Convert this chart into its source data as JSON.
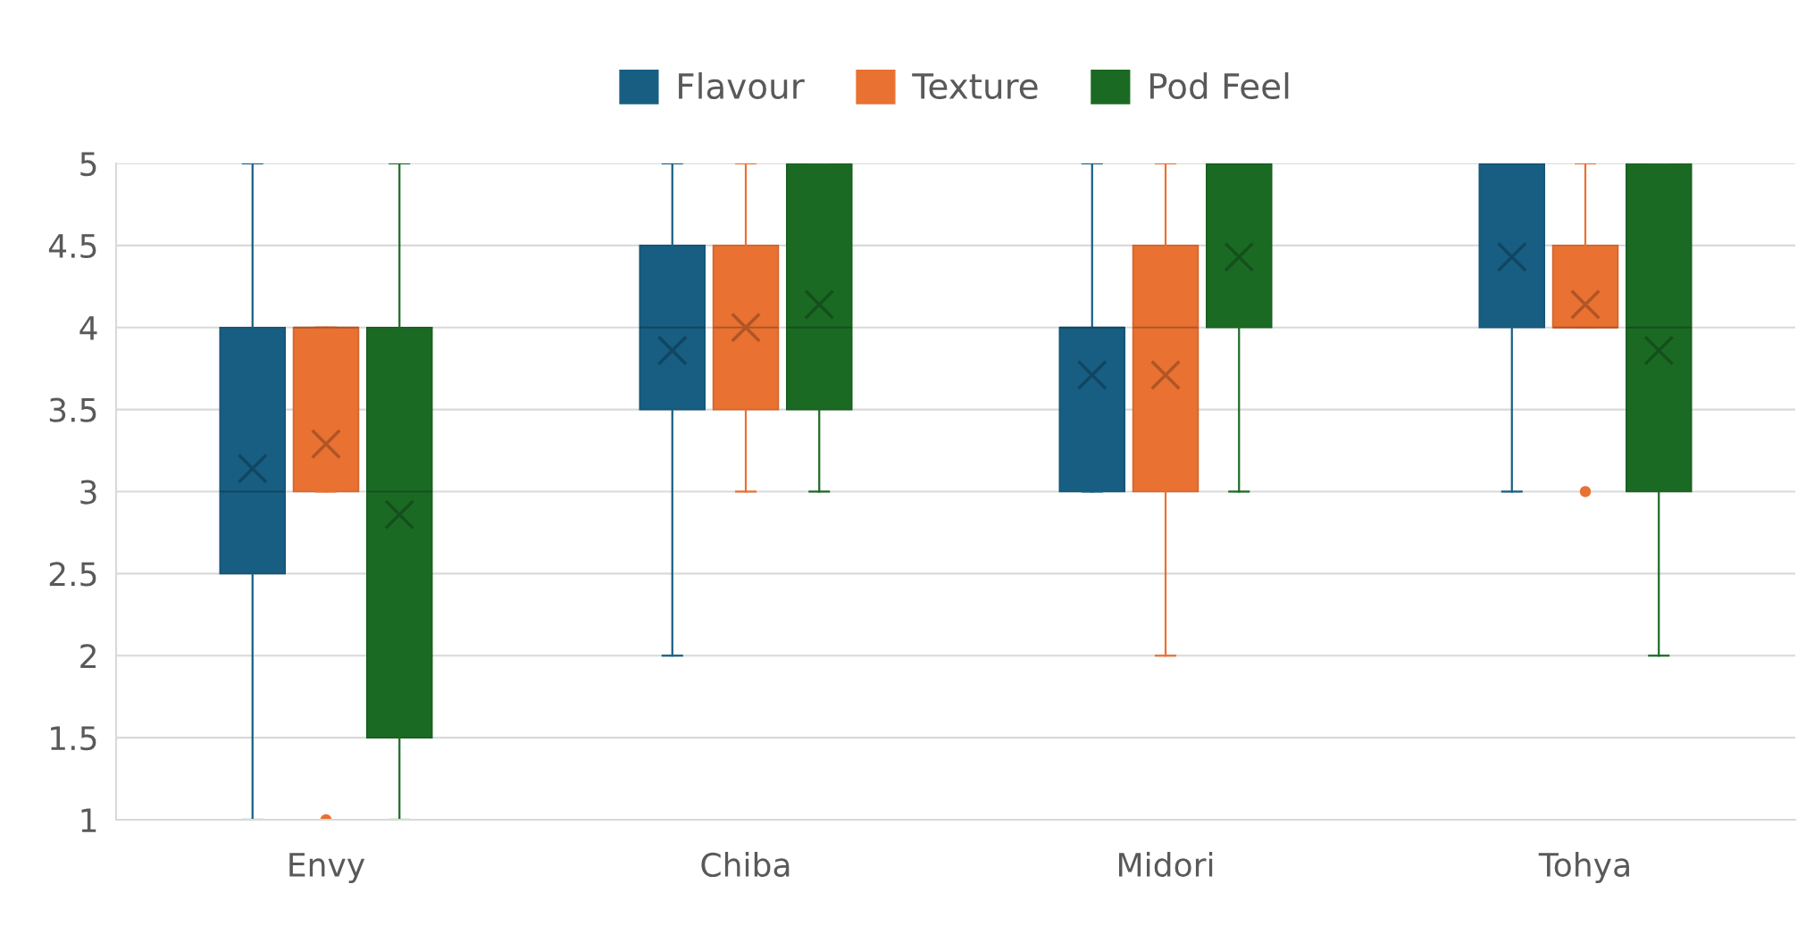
{
  "chart_data": {
    "type": "box",
    "categories": [
      "Envy",
      "Chiba",
      "Midori",
      "Tohya"
    ],
    "series": [
      {
        "name": "Flavour",
        "color": "#175e82",
        "boxes": [
          {
            "low": 1,
            "q1": 2.5,
            "median": 3,
            "q3": 4,
            "high": 5,
            "mean": 3.14
          },
          {
            "low": 2,
            "q1": 3.5,
            "median": 4,
            "q3": 4.5,
            "high": 5,
            "mean": 3.86
          },
          {
            "low": 3,
            "q1": 3,
            "median": 4,
            "q3": 4,
            "high": 5,
            "mean": 3.71
          },
          {
            "low": 3,
            "q1": 4,
            "median": 5,
            "q3": 5,
            "high": 5,
            "mean": 4.43
          }
        ]
      },
      {
        "name": "Texture",
        "color": "#e97132",
        "boxes": [
          {
            "low": 3,
            "q1": 3,
            "median": 4,
            "q3": 4,
            "high": 4,
            "mean": 3.29,
            "outliers": [
              1
            ]
          },
          {
            "low": 3,
            "q1": 3.5,
            "median": 4,
            "q3": 4.5,
            "high": 5,
            "mean": 4.0
          },
          {
            "low": 2,
            "q1": 3,
            "median": 4,
            "q3": 4.5,
            "high": 5,
            "mean": 3.71
          },
          {
            "low": 4,
            "q1": 4,
            "median": 4,
            "q3": 4.5,
            "high": 5,
            "mean": 4.14,
            "outliers": [
              3
            ]
          }
        ]
      },
      {
        "name": "Pod Feel",
        "color": "#1b6a24",
        "boxes": [
          {
            "low": 1,
            "q1": 1.5,
            "median": 3,
            "q3": 4,
            "high": 5,
            "mean": 2.86
          },
          {
            "low": 3,
            "q1": 3.5,
            "median": 4,
            "q3": 5,
            "high": 5,
            "mean": 4.14
          },
          {
            "low": 3,
            "q1": 4,
            "median": 5,
            "q3": 5,
            "high": 5,
            "mean": 4.43
          },
          {
            "low": 2,
            "q1": 3,
            "median": 4,
            "q3": 5,
            "high": 5,
            "mean": 3.86
          }
        ]
      }
    ],
    "ylim": [
      1,
      5
    ],
    "yticks": [
      1,
      1.5,
      2,
      2.5,
      3,
      3.5,
      4,
      4.5,
      5
    ],
    "grid": "y",
    "legend": "top",
    "marker": "cross"
  }
}
